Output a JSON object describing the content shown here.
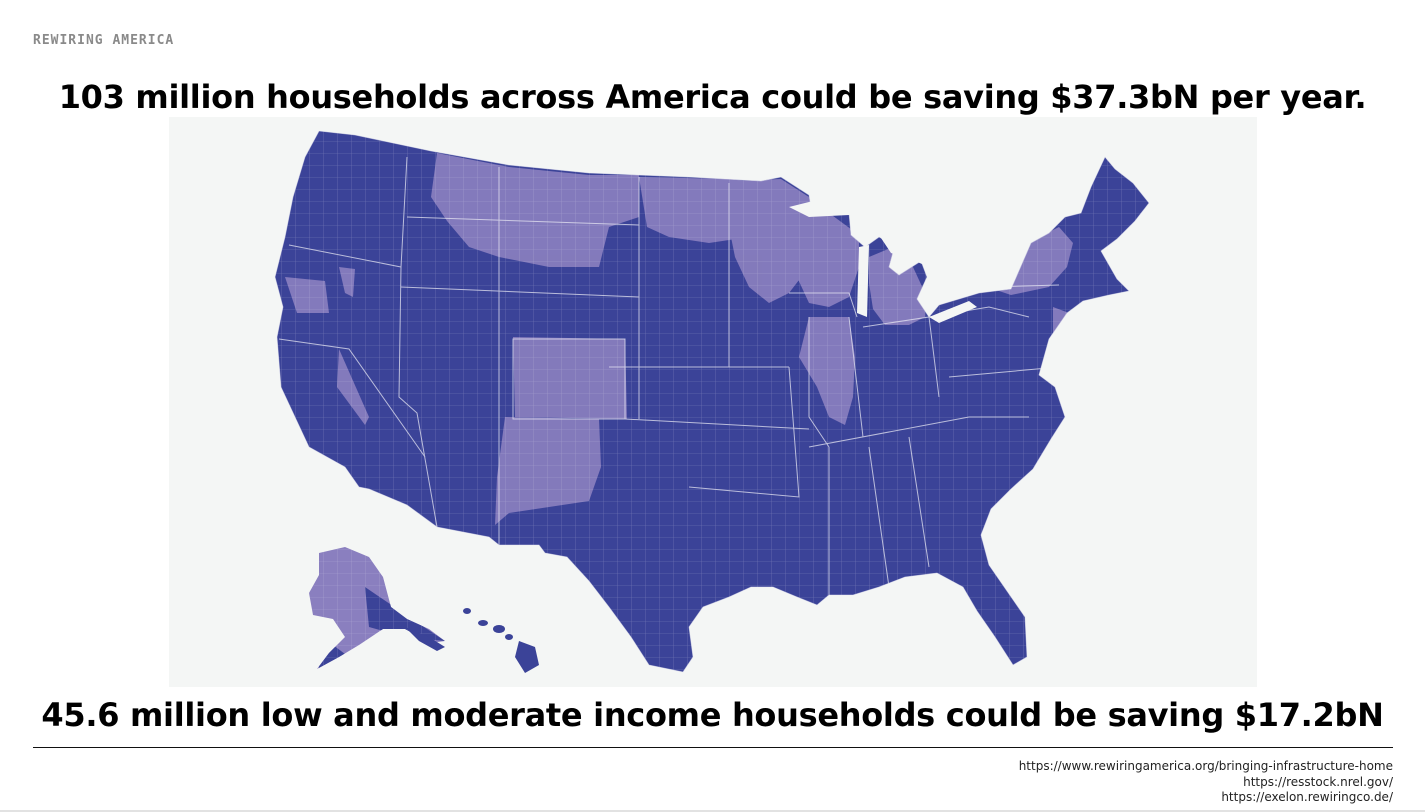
{
  "brand": "REWIRING AMERICA",
  "headline_top": "103 million households across America could be saving $37.3bN per year.",
  "headline_bottom": "45.6 million low and moderate income households could be saving $17.2bN",
  "sources": [
    "https://www.rewiringamerica.org/bringing-infrastructure-home",
    "https://resstock.nrel.gov/",
    "https://exelon.rewiringco.de/"
  ],
  "map": {
    "type": "choropleth",
    "geography": "US counties",
    "colors": {
      "dark": "#3b4398",
      "light": "#8a7fbf",
      "border": "#e6e6f2",
      "background": "#f4f6f5"
    }
  }
}
